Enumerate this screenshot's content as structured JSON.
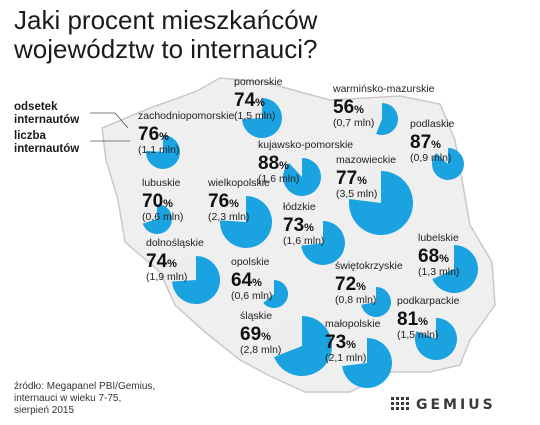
{
  "title_lines": [
    "Jaki procent mieszkańców",
    "województw to internauci?"
  ],
  "legend": {
    "percent_label": [
      "odsetek",
      "internautów"
    ],
    "count_label": [
      "liczba",
      "internautów"
    ]
  },
  "source": [
    "źródło: Megapanel PBI/Gemius,",
    "internauci w wieku 7-75,",
    "sierpień 2015"
  ],
  "logo": {
    "text": "GEMIUS",
    "icon": "gemius-dot-grid-icon"
  },
  "colors": {
    "pie_fill": "#1aa3e0",
    "pie_rest": "#ededed",
    "map_fill": "#efefef",
    "map_border": "#c9c9c9"
  },
  "chart_data": {
    "type": "pie",
    "pct_unit": "%",
    "regions": [
      {
        "name": "pomorskie",
        "percent": 74,
        "users": "(1,5 mln)"
      },
      {
        "name": "warmińsko-mazurskie",
        "percent": 56,
        "users": "(0,7 mln)"
      },
      {
        "name": "zachodniopomorskie",
        "percent": 76,
        "users": "(1,1 mln)"
      },
      {
        "name": "podlaskie",
        "percent": 87,
        "users": "(0,9 mln)"
      },
      {
        "name": "kujawsko-pomorskie",
        "percent": 88,
        "users": "(1,6 mln)"
      },
      {
        "name": "mazowieckie",
        "percent": 77,
        "users": "(3,5 mln)"
      },
      {
        "name": "lubuskie",
        "percent": 70,
        "users": "(0,6 mln)"
      },
      {
        "name": "wielkopolskie",
        "percent": 76,
        "users": "(2,3 mln)"
      },
      {
        "name": "łódzkie",
        "percent": 73,
        "users": "(1,6 mln)"
      },
      {
        "name": "dolnośląskie",
        "percent": 74,
        "users": "(1,9 mln)"
      },
      {
        "name": "lubelskie",
        "percent": 68,
        "users": "(1,3 mln)"
      },
      {
        "name": "opolskie",
        "percent": 64,
        "users": "(0,6 mln)"
      },
      {
        "name": "świętokrzyskie",
        "percent": 72,
        "users": "(0,8 mln)"
      },
      {
        "name": "podkarpackie",
        "percent": 81,
        "users": "(1,5 mln)"
      },
      {
        "name": "śląskie",
        "percent": 69,
        "users": "(2,8 mln)"
      },
      {
        "name": "małopolskie",
        "percent": 73,
        "users": "(2,1 mln)"
      }
    ]
  }
}
